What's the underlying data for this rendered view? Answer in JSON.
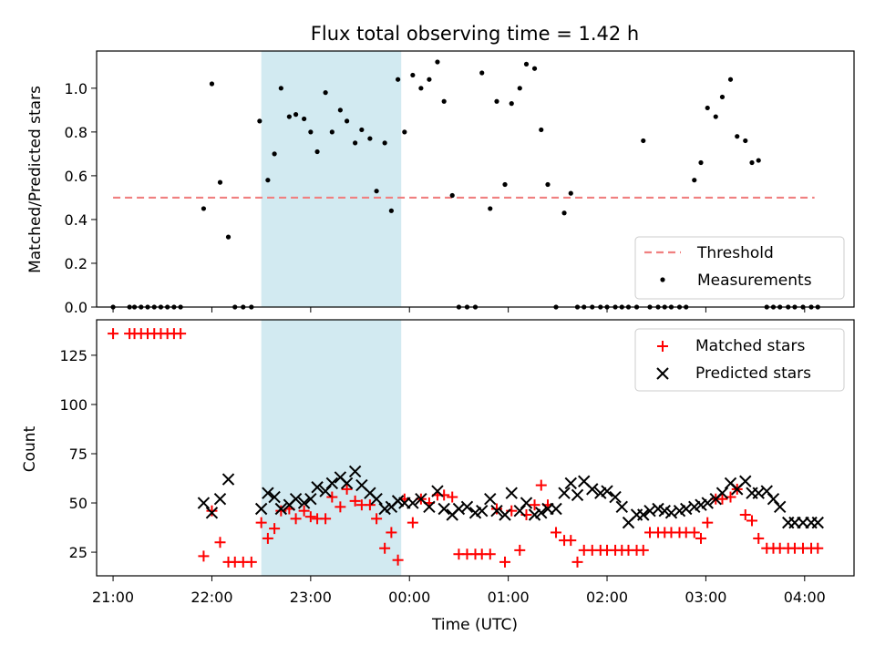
{
  "title": "Flux total observing time = 1.42 h",
  "chart_data": [
    {
      "type": "scatter",
      "panel": "top",
      "ylabel": "Matched/Predicted stars",
      "xlabel": "",
      "xlim": [
        "20:50",
        "04:30"
      ],
      "ylim": [
        0,
        1.17
      ],
      "yticks": [
        0.0,
        0.2,
        0.4,
        0.6,
        0.8,
        1.0
      ],
      "yticklabels": [
        "0.0",
        "0.2",
        "0.4",
        "0.6",
        "0.8",
        "1.0"
      ],
      "legend_position": "lower-right",
      "shaded_interval": {
        "start": "22:30",
        "end": "23:55",
        "color": "#add8e6"
      },
      "threshold": {
        "name": "Threshold",
        "y": 0.5,
        "x_start": "21:00",
        "x_end": "04:06",
        "color": "#f08080",
        "style": "dashed"
      },
      "series": [
        {
          "name": "Measurements",
          "color": "#000000",
          "marker": "dot",
          "x": [
            "21:00",
            "21:10",
            "21:13",
            "21:17",
            "21:21",
            "21:25",
            "21:29",
            "21:33",
            "21:37",
            "21:41",
            "21:55",
            "22:00",
            "22:05",
            "22:10",
            "22:14",
            "22:19",
            "22:24",
            "22:29",
            "22:34",
            "22:38",
            "22:42",
            "22:47",
            "22:51",
            "22:56",
            "23:00",
            "23:04",
            "23:09",
            "23:13",
            "23:18",
            "23:22",
            "23:27",
            "23:31",
            "23:36",
            "23:40",
            "23:45",
            "23:49",
            "23:53",
            "23:57",
            "00:02",
            "00:07",
            "00:12",
            "00:17",
            "00:21",
            "00:26",
            "00:30",
            "00:35",
            "00:40",
            "00:44",
            "00:49",
            "00:53",
            "00:58",
            "01:02",
            "01:07",
            "01:11",
            "01:16",
            "01:20",
            "01:24",
            "01:29",
            "01:34",
            "01:38",
            "01:42",
            "01:46",
            "01:51",
            "01:56",
            "02:00",
            "02:05",
            "02:09",
            "02:13",
            "02:18",
            "02:22",
            "02:26",
            "02:31",
            "02:35",
            "02:39",
            "02:44",
            "02:48",
            "02:53",
            "02:57",
            "03:01",
            "03:06",
            "03:10",
            "03:15",
            "03:19",
            "03:24",
            "03:28",
            "03:32",
            "03:37",
            "03:41",
            "03:45",
            "03:50",
            "03:54",
            "03:59",
            "04:04",
            "04:08"
          ],
          "y": [
            0.0,
            0.0,
            0.0,
            0.0,
            0.0,
            0.0,
            0.0,
            0.0,
            0.0,
            0.0,
            0.45,
            1.02,
            0.57,
            0.32,
            0.0,
            0.0,
            0.0,
            0.85,
            0.58,
            0.7,
            1.0,
            0.87,
            0.88,
            0.86,
            0.8,
            0.71,
            0.98,
            0.8,
            0.9,
            0.85,
            0.75,
            0.81,
            0.77,
            0.53,
            0.75,
            0.44,
            1.04,
            0.8,
            1.06,
            1.0,
            1.04,
            1.12,
            0.94,
            0.51,
            0.0,
            0.0,
            0.0,
            1.07,
            0.45,
            0.94,
            0.56,
            0.93,
            1.0,
            1.11,
            1.09,
            0.81,
            0.56,
            0.0,
            0.43,
            0.52,
            0.0,
            0.0,
            0.0,
            0.0,
            0.0,
            0.0,
            0.0,
            0.0,
            0.0,
            0.76,
            0.0,
            0.0,
            0.0,
            0.0,
            0.0,
            0.0,
            0.58,
            0.66,
            0.91,
            0.87,
            0.96,
            1.04,
            0.78,
            0.76,
            0.66,
            0.67,
            0.0,
            0.0,
            0.0,
            0.0,
            0.0,
            0.0,
            0.0,
            0.0
          ]
        }
      ]
    },
    {
      "type": "scatter",
      "panel": "bottom",
      "ylabel": "Count",
      "xlabel": "Time (UTC)",
      "xlim": [
        "20:50",
        "04:30"
      ],
      "ylim": [
        13,
        143
      ],
      "yticks": [
        25,
        50,
        75,
        100,
        125
      ],
      "yticklabels": [
        "25",
        "50",
        "75",
        "100",
        "125"
      ],
      "xticks": [
        "21:00",
        "22:00",
        "23:00",
        "00:00",
        "01:00",
        "02:00",
        "03:00",
        "04:00"
      ],
      "xticklabels": [
        "21:00",
        "22:00",
        "23:00",
        "00:00",
        "01:00",
        "02:00",
        "03:00",
        "04:00"
      ],
      "legend_position": "upper-right",
      "shaded_interval": {
        "start": "22:30",
        "end": "23:55",
        "color": "#add8e6"
      },
      "series": [
        {
          "name": "Matched stars",
          "color": "#ff0000",
          "marker": "plus",
          "x": [
            "21:00",
            "21:10",
            "21:13",
            "21:17",
            "21:21",
            "21:25",
            "21:29",
            "21:33",
            "21:37",
            "21:41",
            "21:55",
            "22:00",
            "22:05",
            "22:10",
            "22:14",
            "22:19",
            "22:24",
            "22:30",
            "22:34",
            "22:38",
            "22:42",
            "22:47",
            "22:51",
            "22:56",
            "23:00",
            "23:04",
            "23:09",
            "23:13",
            "23:18",
            "23:22",
            "23:27",
            "23:31",
            "23:36",
            "23:40",
            "23:45",
            "23:49",
            "23:53",
            "23:57",
            "00:02",
            "00:07",
            "00:12",
            "00:17",
            "00:21",
            "00:26",
            "00:30",
            "00:35",
            "00:40",
            "00:44",
            "00:49",
            "00:53",
            "00:58",
            "01:02",
            "01:07",
            "01:11",
            "01:16",
            "01:20",
            "01:24",
            "01:29",
            "01:34",
            "01:38",
            "01:42",
            "01:46",
            "01:51",
            "01:56",
            "02:00",
            "02:05",
            "02:09",
            "02:13",
            "02:18",
            "02:22",
            "02:26",
            "02:31",
            "02:35",
            "02:39",
            "02:44",
            "02:48",
            "02:53",
            "02:57",
            "03:01",
            "03:06",
            "03:10",
            "03:15",
            "03:19",
            "03:24",
            "03:28",
            "03:32",
            "03:37",
            "03:41",
            "03:45",
            "03:50",
            "03:54",
            "03:59",
            "04:04",
            "04:08"
          ],
          "y": [
            136,
            136,
            136,
            136,
            136,
            136,
            136,
            136,
            136,
            136,
            23,
            46,
            30,
            20,
            20,
            20,
            20,
            40,
            32,
            37,
            46,
            47,
            42,
            46,
            43,
            42,
            42,
            53,
            48,
            57,
            51,
            49,
            49,
            42,
            27,
            35,
            21,
            52,
            40,
            52,
            50,
            54,
            54,
            53,
            24,
            24,
            24,
            24,
            24,
            47,
            20,
            46,
            26,
            44,
            49,
            59,
            49,
            35,
            31,
            31,
            20,
            26,
            26,
            26,
            26,
            26,
            26,
            26,
            26,
            26,
            35,
            35,
            35,
            35,
            35,
            35,
            35,
            32,
            40,
            52,
            52,
            53,
            57,
            44,
            41,
            32,
            27,
            27,
            27,
            27,
            27,
            27,
            27,
            27
          ]
        },
        {
          "name": "Predicted stars",
          "color": "#000000",
          "marker": "x",
          "x": [
            "21:55",
            "22:00",
            "22:05",
            "22:10",
            "22:30",
            "22:34",
            "22:38",
            "22:42",
            "22:47",
            "22:51",
            "22:56",
            "23:00",
            "23:04",
            "23:09",
            "23:13",
            "23:18",
            "23:22",
            "23:27",
            "23:31",
            "23:36",
            "23:40",
            "23:45",
            "23:49",
            "23:53",
            "23:57",
            "00:02",
            "00:07",
            "00:12",
            "00:17",
            "00:21",
            "00:26",
            "00:30",
            "00:35",
            "00:40",
            "00:44",
            "00:49",
            "00:53",
            "00:58",
            "01:02",
            "01:07",
            "01:11",
            "01:16",
            "01:20",
            "01:24",
            "01:29",
            "01:34",
            "01:38",
            "01:42",
            "01:46",
            "01:51",
            "01:56",
            "02:00",
            "02:05",
            "02:09",
            "02:13",
            "02:18",
            "02:22",
            "02:26",
            "02:31",
            "02:35",
            "02:39",
            "02:44",
            "02:48",
            "02:53",
            "02:57",
            "03:01",
            "03:06",
            "03:10",
            "03:15",
            "03:19",
            "03:24",
            "03:28",
            "03:32",
            "03:37",
            "03:41",
            "03:45",
            "03:50",
            "03:54",
            "03:59",
            "04:04",
            "04:08"
          ],
          "y": [
            50,
            45,
            52,
            62,
            47,
            55,
            53,
            47,
            49,
            52,
            50,
            52,
            58,
            56,
            60,
            63,
            60,
            66,
            59,
            55,
            52,
            47,
            48,
            51,
            50,
            50,
            52,
            48,
            56,
            47,
            44,
            47,
            48,
            45,
            46,
            52,
            46,
            44,
            55,
            46,
            50,
            44,
            45,
            47,
            47,
            55,
            60,
            54,
            61,
            57,
            55,
            56,
            53,
            48,
            40,
            44,
            44,
            46,
            47,
            46,
            45,
            46,
            47,
            48,
            49,
            50,
            52,
            55,
            60,
            57,
            61,
            55,
            55,
            56,
            52,
            48,
            40,
            40,
            40,
            40,
            40
          ]
        }
      ]
    }
  ]
}
